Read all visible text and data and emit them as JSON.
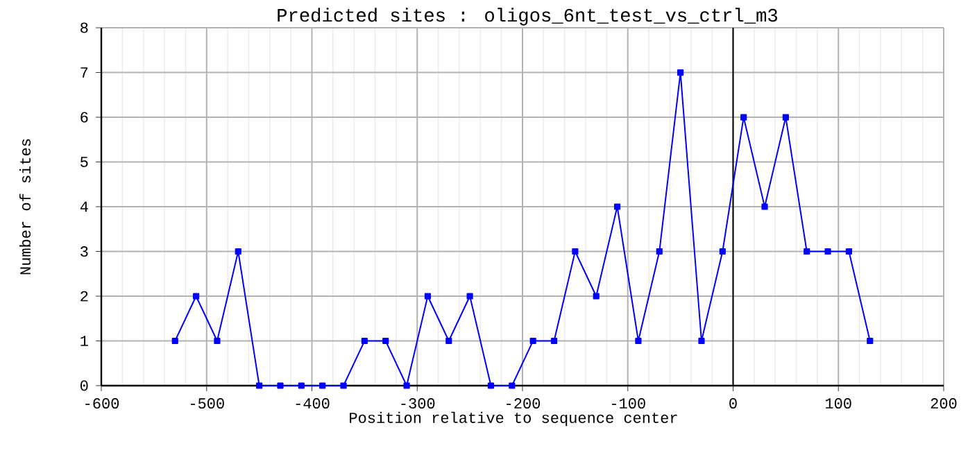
{
  "chart_data": {
    "type": "line",
    "title": "Predicted sites : oligos_6nt_test_vs_ctrl_m3",
    "xlabel": "Position relative to sequence center",
    "ylabel": "Number of sites",
    "x": [
      -530,
      -510,
      -490,
      -470,
      -450,
      -430,
      -410,
      -390,
      -370,
      -350,
      -330,
      -310,
      -290,
      -270,
      -250,
      -230,
      -210,
      -190,
      -170,
      -150,
      -130,
      -110,
      -90,
      -70,
      -50,
      -30,
      -10,
      10,
      30,
      50,
      70,
      90,
      110,
      130
    ],
    "series": [
      {
        "color": "#0000ff",
        "values": [
          1,
          2,
          1,
          3,
          0,
          0,
          0,
          0,
          0,
          1,
          1,
          0,
          2,
          1,
          2,
          0,
          0,
          1,
          1,
          3,
          2,
          4,
          1,
          3,
          7,
          1,
          3,
          6,
          4,
          6,
          3,
          3,
          3,
          1
        ]
      }
    ],
    "xlim": [
      -600,
      200
    ],
    "xticks": [
      -600,
      -500,
      -400,
      -300,
      -200,
      -100,
      0,
      100,
      200
    ],
    "ylim": [
      0,
      8
    ],
    "yticks": [
      0,
      1,
      2,
      3,
      4,
      5,
      6,
      7,
      8
    ],
    "ref_lines": [
      {
        "axis": "x",
        "value": 0,
        "color": "#000000"
      }
    ],
    "grid": true,
    "marker": "square",
    "line_style": "solid"
  }
}
